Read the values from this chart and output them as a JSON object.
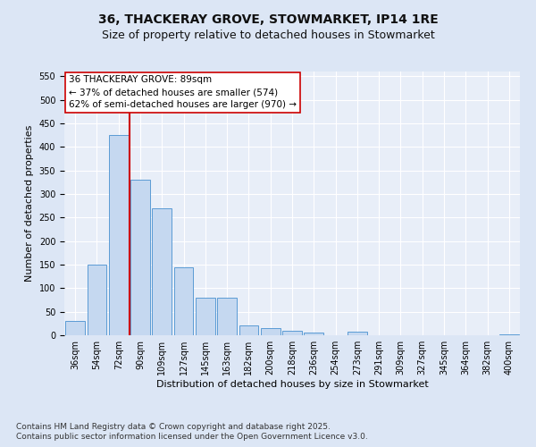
{
  "title_line1": "36, THACKERAY GROVE, STOWMARKET, IP14 1RE",
  "title_line2": "Size of property relative to detached houses in Stowmarket",
  "xlabel": "Distribution of detached houses by size in Stowmarket",
  "ylabel": "Number of detached properties",
  "categories": [
    "36sqm",
    "54sqm",
    "72sqm",
    "90sqm",
    "109sqm",
    "127sqm",
    "145sqm",
    "163sqm",
    "182sqm",
    "200sqm",
    "218sqm",
    "236sqm",
    "254sqm",
    "273sqm",
    "291sqm",
    "309sqm",
    "327sqm",
    "345sqm",
    "364sqm",
    "382sqm",
    "400sqm"
  ],
  "values": [
    30,
    150,
    425,
    330,
    270,
    145,
    80,
    80,
    20,
    15,
    10,
    5,
    0,
    8,
    0,
    0,
    0,
    0,
    0,
    0,
    2
  ],
  "bar_color": "#c5d8f0",
  "bar_edge_color": "#5b9bd5",
  "vline_color": "#cc0000",
  "vline_pos": 2.5,
  "ylim": [
    0,
    560
  ],
  "yticks": [
    0,
    50,
    100,
    150,
    200,
    250,
    300,
    350,
    400,
    450,
    500,
    550
  ],
  "annotation_text": "36 THACKERAY GROVE: 89sqm\n← 37% of detached houses are smaller (574)\n62% of semi-detached houses are larger (970) →",
  "annotation_box_color": "#ffffff",
  "annotation_box_edge": "#cc0000",
  "bg_color": "#dce6f5",
  "plot_bg_color": "#e8eef8",
  "footer_line1": "Contains HM Land Registry data © Crown copyright and database right 2025.",
  "footer_line2": "Contains public sector information licensed under the Open Government Licence v3.0.",
  "title_fontsize": 10,
  "subtitle_fontsize": 9,
  "axis_label_fontsize": 8,
  "tick_fontsize": 7,
  "annotation_fontsize": 7.5,
  "footer_fontsize": 6.5
}
